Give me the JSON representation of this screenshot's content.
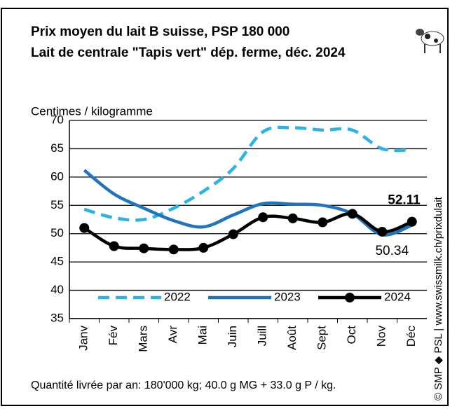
{
  "chart_data": {
    "type": "line",
    "title": "Prix moyen du lait B suisse, PSP 180 000",
    "subtitle": "Lait de centrale \"Tapis vert\" dép. ferme, déc. 2024",
    "y_label": "Centimes / kilogramme",
    "footnote": "Quantité livrée par an: 180'000 kg; 40.0 g MG + 33.0 g P / kg.",
    "source": "© SMP ◆ PSL | www.swissmilk.ch/prixdulait",
    "categories": [
      "Janv",
      "Fév",
      "Mars",
      "Avr",
      "Mai",
      "Juin",
      "Juill",
      "Août",
      "Sept",
      "Oct",
      "Nov",
      "Déc"
    ],
    "series": [
      {
        "name": "2022",
        "color": "#2bb3e6",
        "dashed": true,
        "values": [
          54.3,
          52.8,
          52.5,
          54.5,
          57.5,
          61.5,
          68.0,
          68.7,
          68.3,
          68.3,
          65.0,
          64.8
        ]
      },
      {
        "name": "2023",
        "color": "#1f74bd",
        "values": [
          61.2,
          57.0,
          54.5,
          52.3,
          51.2,
          53.3,
          55.3,
          55.2,
          55.0,
          53.5,
          49.8,
          51.5
        ]
      },
      {
        "name": "2024",
        "color": "#000000",
        "markers": true,
        "values": [
          51.0,
          47.8,
          47.4,
          47.2,
          47.5,
          49.9,
          52.9,
          52.7,
          52.0,
          53.5,
          50.34,
          52.11
        ]
      }
    ],
    "ylim": [
      35,
      70
    ],
    "yticks": [
      35,
      40,
      45,
      50,
      55,
      60,
      65,
      70
    ],
    "grid": true
  }
}
